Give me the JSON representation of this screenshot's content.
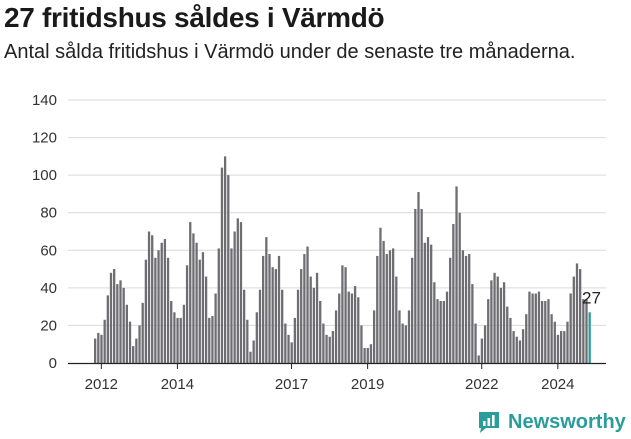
{
  "header": {
    "title": "27 fritidshus såldes i Värmdö",
    "subtitle": "Antal sålda fritidshus i Värmdö under de senaste tre månaderna."
  },
  "brand": {
    "name": "Newsworthy",
    "color": "#2a9d9b"
  },
  "colors": {
    "bar": "#6e6e72",
    "highlight": "#2a9d9b",
    "grid": "#d9d9d9"
  },
  "chart_data": {
    "type": "bar",
    "title": "27 fritidshus såldes i Värmdö",
    "xlabel": "",
    "ylabel": "",
    "ylim": [
      0,
      140
    ],
    "yticks": [
      "0",
      "20",
      "40",
      "60",
      "80",
      "100",
      "120",
      "140"
    ],
    "xticks": [
      {
        "label": "2012",
        "index": 2
      },
      {
        "label": "2014",
        "index": 26
      },
      {
        "label": "2017",
        "index": 62
      },
      {
        "label": "2019",
        "index": 86
      },
      {
        "label": "2022",
        "index": 122
      },
      {
        "label": "2024",
        "index": 146
      }
    ],
    "series": [
      {
        "name": "Antal sålda fritidshus (rullande tre månader)",
        "values": [
          13,
          16,
          15,
          23,
          36,
          48,
          50,
          42,
          44,
          40,
          31,
          22,
          9,
          13,
          20,
          32,
          55,
          70,
          68,
          56,
          60,
          64,
          66,
          56,
          33,
          27,
          24,
          24,
          31,
          52,
          75,
          69,
          64,
          55,
          59,
          46,
          24,
          25,
          37,
          61,
          104,
          110,
          100,
          61,
          70,
          77,
          75,
          39,
          23,
          6,
          12,
          27,
          39,
          57,
          67,
          58,
          51,
          50,
          57,
          39,
          21,
          15,
          11,
          24,
          39,
          50,
          58,
          62,
          46,
          40,
          48,
          33,
          21,
          15,
          14,
          17,
          28,
          37,
          52,
          51,
          38,
          37,
          41,
          35,
          20,
          8,
          8,
          10,
          28,
          57,
          72,
          65,
          58,
          60,
          61,
          46,
          28,
          21,
          20,
          28,
          56,
          82,
          91,
          82,
          64,
          67,
          63,
          43,
          34,
          33,
          33,
          38,
          56,
          74,
          94,
          80,
          60,
          57,
          58,
          42,
          21,
          4,
          13,
          20,
          34,
          44,
          48,
          46,
          40,
          43,
          30,
          24,
          17,
          14,
          12,
          18,
          26,
          38,
          37,
          37,
          38,
          33,
          33,
          34,
          26,
          22,
          15,
          17,
          17,
          22,
          37,
          46,
          53,
          50,
          34,
          34,
          27
        ],
        "last_value_label": "27"
      }
    ]
  }
}
